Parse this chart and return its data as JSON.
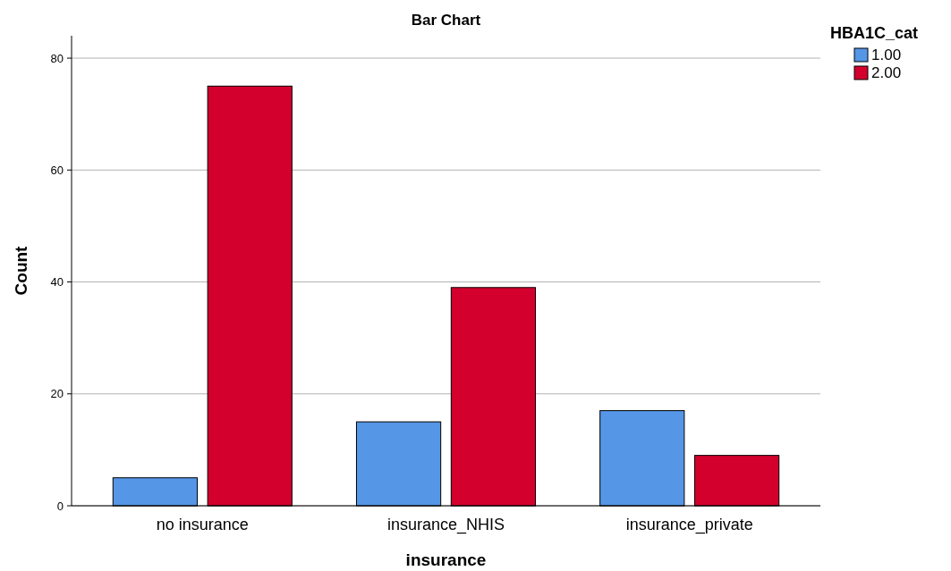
{
  "chart_data": {
    "type": "bar",
    "title": "Bar Chart",
    "xlabel": "insurance",
    "ylabel": "Count",
    "legend_title": "HBA1C_cat",
    "categories": [
      "no insurance",
      "insurance_NHIS",
      "insurance_private"
    ],
    "series": [
      {
        "name": "1.00",
        "color": "#5596e6",
        "values": [
          5,
          15,
          17
        ]
      },
      {
        "name": "2.00",
        "color": "#d3002d",
        "values": [
          75,
          39,
          9
        ]
      }
    ],
    "ylim": [
      0,
      84
    ],
    "yticks": [
      0,
      20,
      40,
      60,
      80
    ],
    "grid": "y",
    "legend": "top right"
  }
}
